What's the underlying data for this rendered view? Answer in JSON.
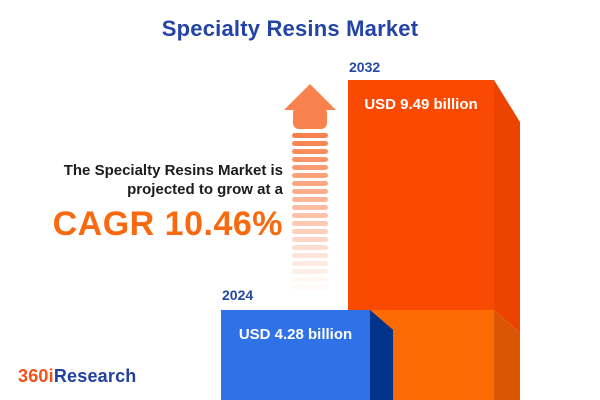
{
  "title": "Specialty Resins Market",
  "description": {
    "line1": "The Specialty Resins Market is",
    "line2": "projected to grow at a",
    "cagr_text": "CAGR 10.46%"
  },
  "chart_data": {
    "type": "bar",
    "title": "Specialty Resins Market",
    "categories": [
      "2024",
      "2032"
    ],
    "values": [
      4.28,
      9.49
    ],
    "unit": "USD billion",
    "value_labels": [
      "USD 4.28 billion",
      "USD 9.49 billion"
    ],
    "cagr_percent": 10.46,
    "legend_position": "none",
    "grid": false,
    "bar_colors": {
      "2024": "#2F72E8",
      "2032": "#FA4A02"
    }
  },
  "logo": {
    "prefix": "360i",
    "suffix": "Research"
  },
  "icons": {
    "growth_arrow": "striped-up-arrow"
  },
  "colors": {
    "title_blue": "#2343A6",
    "cagr_orange": "#F9690F",
    "year_label_blue": "#2648A3",
    "bar_2024_front": "#2F72E8",
    "bar_2024_side": "#04338A",
    "bar_2032_front": "#FA4A02",
    "bar_2032_side": "#EC4300",
    "bar_2032_base_front": "#FB6B02",
    "bar_2032_base_side": "#DB5602",
    "arrow_salmon": "#F8814D",
    "bar_value_text": "#FFFFFF",
    "background": "#FFFFFF"
  }
}
